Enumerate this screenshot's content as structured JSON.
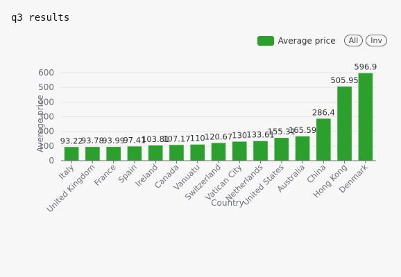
{
  "page": {
    "title": "q3 results"
  },
  "legend": {
    "series_label": "Average price",
    "all_label": "All",
    "inv_label": "Inv"
  },
  "colors": {
    "bar": "#2ca02c",
    "grid": "#e6e6e6",
    "axis": "#6e7079"
  },
  "chart_data": {
    "type": "bar",
    "title": "",
    "xlabel": "Country",
    "ylabel": "Average price",
    "ylim": [
      0,
      600
    ],
    "yticks": [
      0,
      100,
      200,
      300,
      400,
      500,
      600
    ],
    "grid": true,
    "legend_position": "top-right",
    "categories": [
      "Italy",
      "United Kingdom",
      "France",
      "Spain",
      "Ireland",
      "Canada",
      "Vanuatu",
      "Switzerland",
      "Vatican City",
      "Netherlands",
      "United States",
      "Australia",
      "China",
      "Hong Kong",
      "Denmark"
    ],
    "series": [
      {
        "name": "Average price",
        "values": [
          93.22,
          93.78,
          93.99,
          97.41,
          103.81,
          107.17,
          110,
          120.67,
          130,
          133.61,
          155.31,
          165.59,
          286.4,
          505.95,
          596.9
        ]
      }
    ],
    "data_labels": [
      "93.22",
      "93.78",
      "93.99",
      "97.41",
      "103.81",
      "107.17",
      "110",
      "120.67",
      "130",
      "133.61",
      "155.31",
      "165.59",
      "286.4",
      "505.95",
      "596.9"
    ]
  }
}
